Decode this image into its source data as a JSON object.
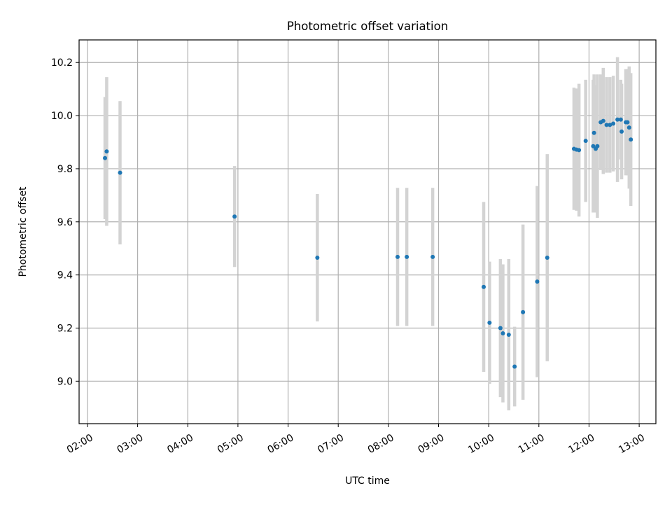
{
  "chart_data": {
    "type": "scatter",
    "title": "Photometric offset variation",
    "xlabel": "UTC time",
    "ylabel": "Photometric offset",
    "xlim": [
      "01:50",
      "13:20"
    ],
    "ylim": [
      8.84,
      10.285
    ],
    "grid": true,
    "colors": {
      "point": "#1f77b4",
      "errorbar": "#d3d3d3",
      "grid": "#b0b0b0"
    },
    "x_ticks": [
      "02:00",
      "03:00",
      "04:00",
      "05:00",
      "06:00",
      "07:00",
      "08:00",
      "09:00",
      "10:00",
      "11:00",
      "12:00",
      "13:00"
    ],
    "y_ticks": [
      "9.0",
      "9.2",
      "9.4",
      "9.6",
      "9.8",
      "10.0",
      "10.2"
    ],
    "points": [
      {
        "time": "02:21",
        "y": 9.84,
        "err": 0.23
      },
      {
        "time": "02:23",
        "y": 9.865,
        "err": 0.28
      },
      {
        "time": "02:39",
        "y": 9.785,
        "err": 0.27
      },
      {
        "time": "04:56",
        "y": 9.62,
        "err": 0.19
      },
      {
        "time": "06:35",
        "y": 9.465,
        "err": 0.24
      },
      {
        "time": "08:11",
        "y": 9.468,
        "err": 0.26
      },
      {
        "time": "08:22",
        "y": 9.468,
        "err": 0.26
      },
      {
        "time": "08:53",
        "y": 9.468,
        "err": 0.26
      },
      {
        "time": "09:54",
        "y": 9.355,
        "err": 0.32
      },
      {
        "time": "10:01",
        "y": 9.22,
        "err": 0.23
      },
      {
        "time": "10:14",
        "y": 9.2,
        "err": 0.26
      },
      {
        "time": "10:17",
        "y": 9.18,
        "err": 0.26
      },
      {
        "time": "10:24",
        "y": 9.175,
        "err": 0.285
      },
      {
        "time": "10:31",
        "y": 9.055,
        "err": 0.15
      },
      {
        "time": "10:41",
        "y": 9.26,
        "err": 0.33
      },
      {
        "time": "10:58",
        "y": 9.375,
        "err": 0.36
      },
      {
        "time": "11:10",
        "y": 9.465,
        "err": 0.39
      },
      {
        "time": "11:42",
        "y": 9.875,
        "err": 0.23
      },
      {
        "time": "11:45",
        "y": 9.872,
        "err": 0.23
      },
      {
        "time": "11:48",
        "y": 9.87,
        "err": 0.25
      },
      {
        "time": "11:56",
        "y": 9.905,
        "err": 0.23
      },
      {
        "time": "12:05",
        "y": 9.885,
        "err": 0.25
      },
      {
        "time": "12:06",
        "y": 9.935,
        "err": 0.22
      },
      {
        "time": "12:08",
        "y": 9.875,
        "err": 0.24
      },
      {
        "time": "12:10",
        "y": 9.885,
        "err": 0.27
      },
      {
        "time": "12:14",
        "y": 9.975,
        "err": 0.18
      },
      {
        "time": "12:17",
        "y": 9.98,
        "err": 0.2
      },
      {
        "time": "12:21",
        "y": 9.965,
        "err": 0.18
      },
      {
        "time": "12:25",
        "y": 9.965,
        "err": 0.18
      },
      {
        "time": "12:29",
        "y": 9.97,
        "err": 0.18
      },
      {
        "time": "12:34",
        "y": 9.985,
        "err": 0.235
      },
      {
        "time": "12:38",
        "y": 9.985,
        "err": 0.15
      },
      {
        "time": "12:39",
        "y": 9.94,
        "err": 0.18
      },
      {
        "time": "12:44",
        "y": 9.975,
        "err": 0.2
      },
      {
        "time": "12:46",
        "y": 9.975,
        "err": 0.2
      },
      {
        "time": "12:48",
        "y": 9.955,
        "err": 0.23
      },
      {
        "time": "12:50",
        "y": 9.91,
        "err": 0.25
      }
    ]
  }
}
